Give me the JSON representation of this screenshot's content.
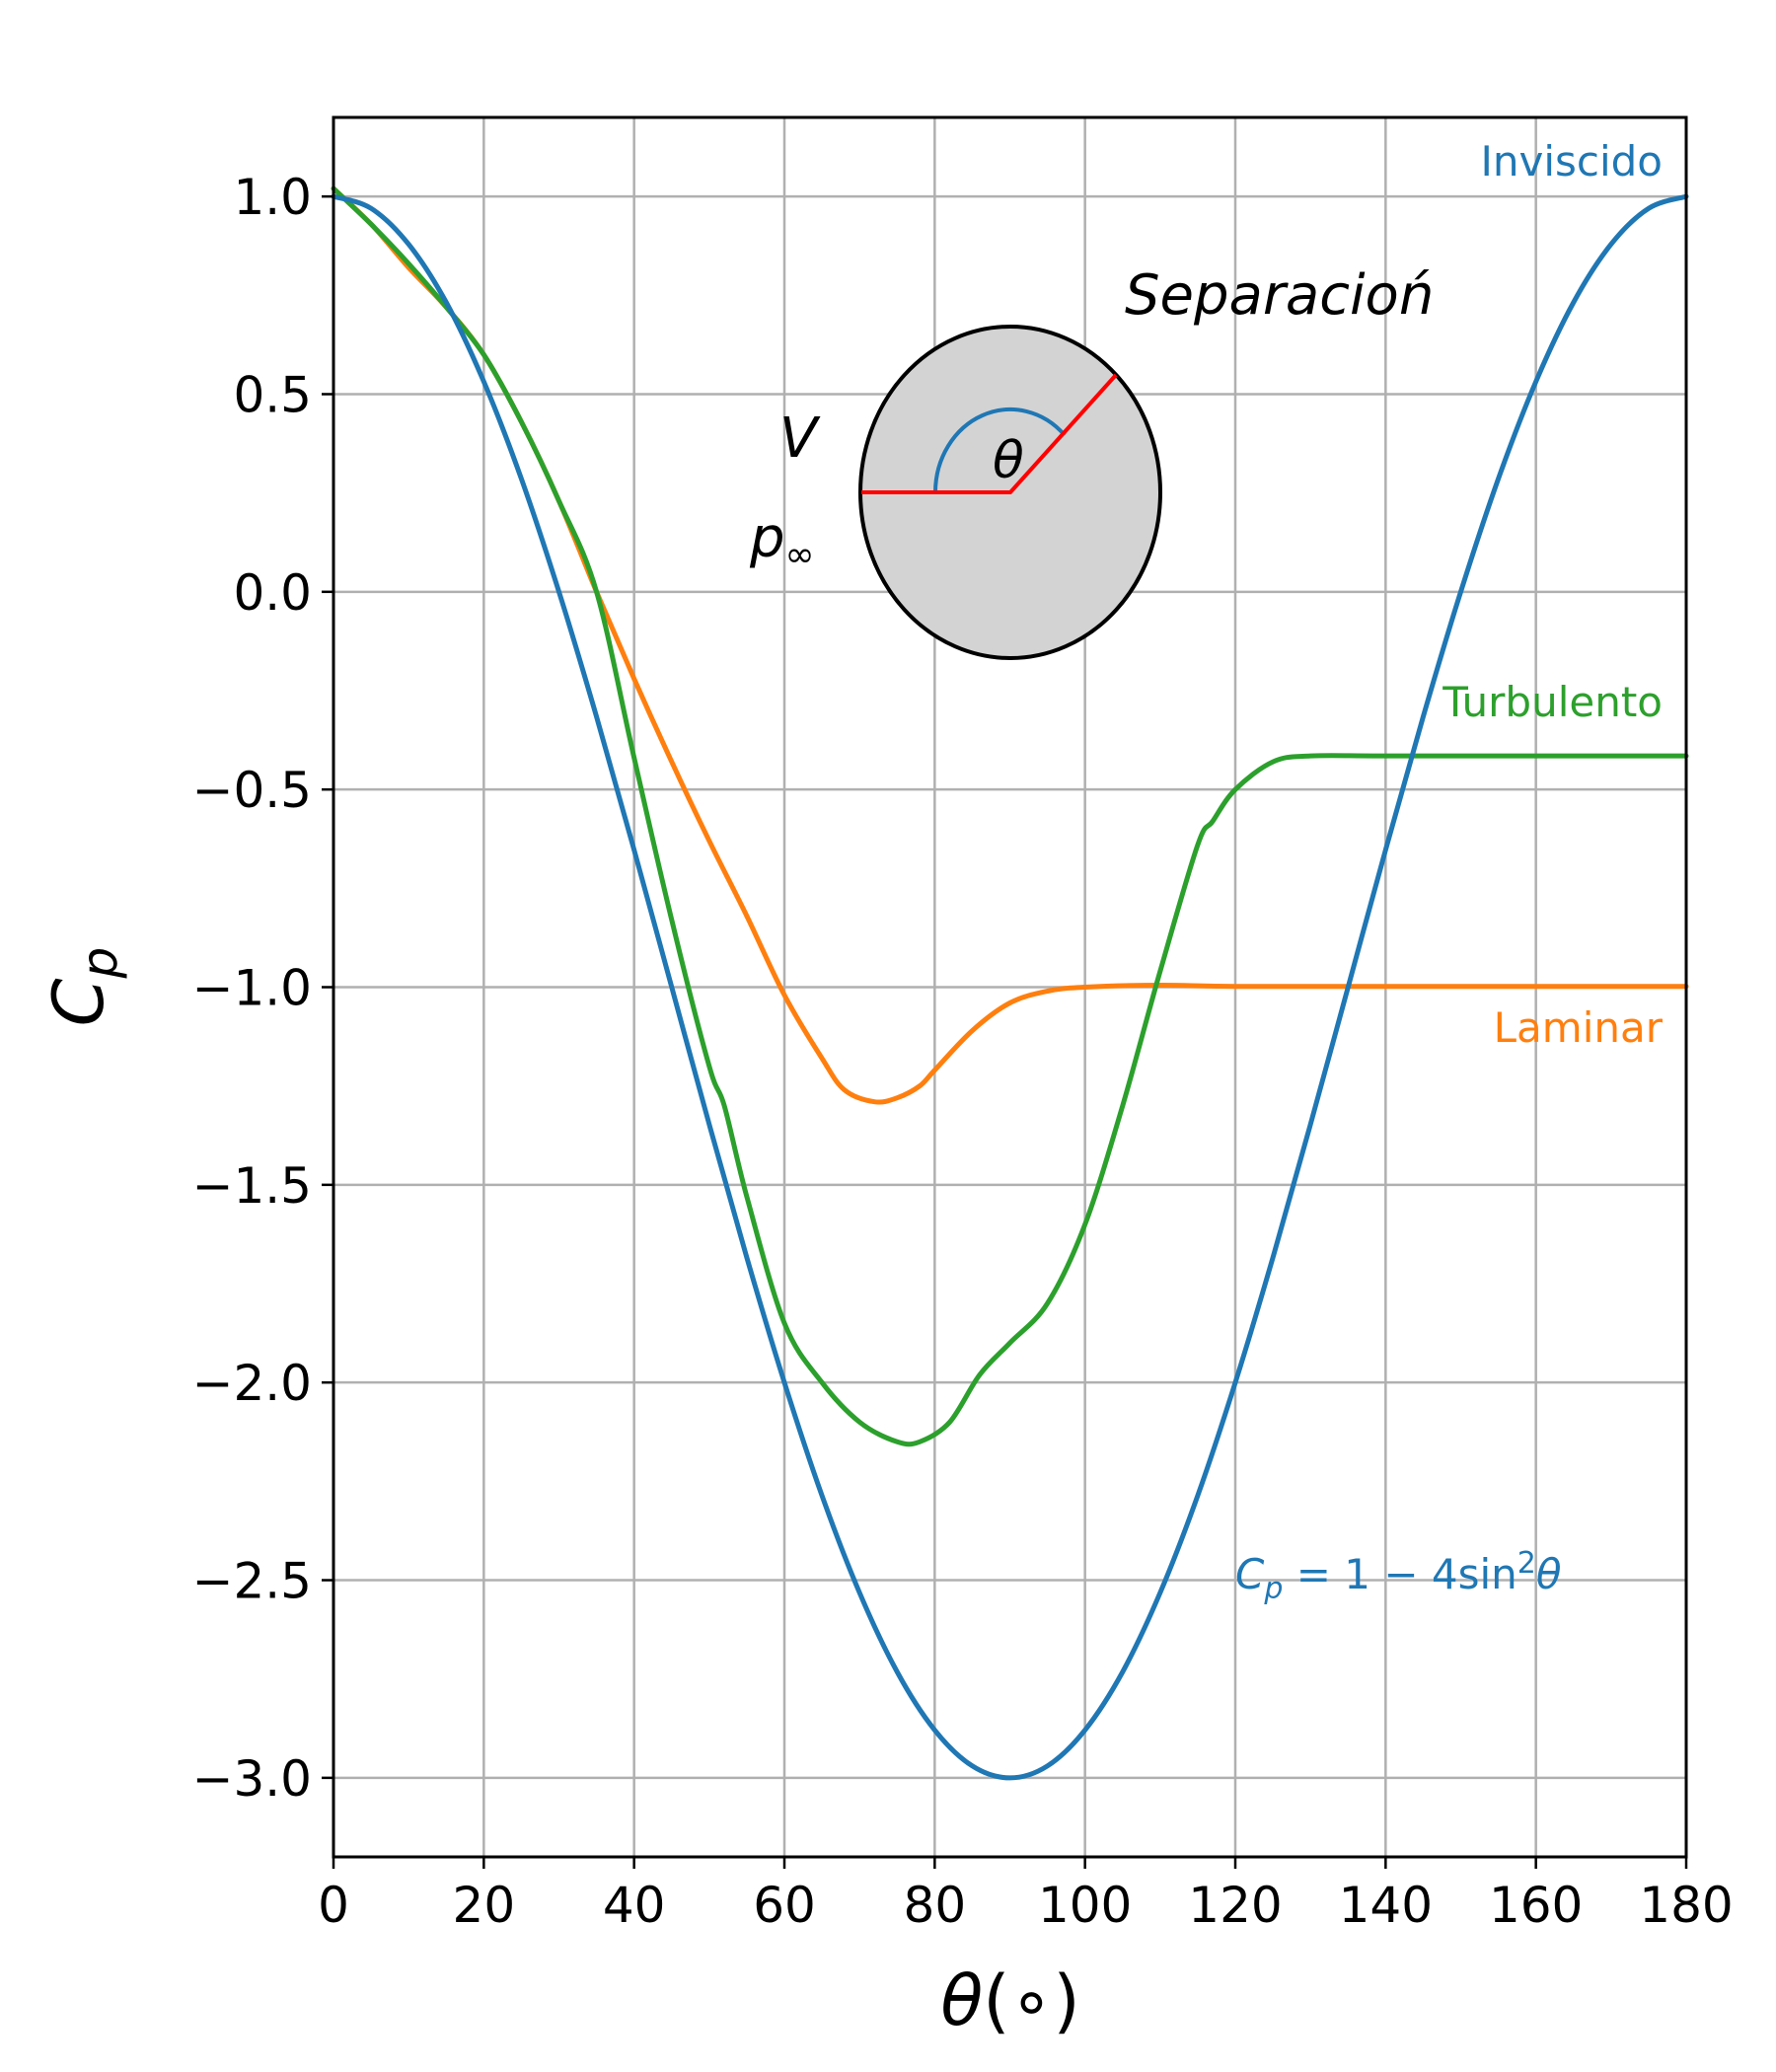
{
  "chart_data": {
    "type": "line",
    "xlabel": "θ(∘)",
    "ylabel": "C_p",
    "xlim": [
      0,
      180
    ],
    "ylim": [
      -3.2,
      1.2
    ],
    "x_ticks": [
      0,
      20,
      40,
      60,
      80,
      100,
      120,
      140,
      160,
      180
    ],
    "x_tick_labels": [
      "0",
      "20",
      "40",
      "60",
      "80",
      "100",
      "120",
      "140",
      "160",
      "180"
    ],
    "y_ticks": [
      1.0,
      0.5,
      0.0,
      -0.5,
      -1.0,
      -1.5,
      -2.0,
      -2.5,
      -3.0
    ],
    "y_tick_labels": [
      "1.0",
      "0.5",
      "0.0",
      "−0.5",
      "−1.0",
      "−1.5",
      "−2.0",
      "−2.5",
      "−3.0"
    ],
    "grid": true,
    "series": [
      {
        "name": "Inviscido",
        "color": "#1f77b4",
        "formula": "C_p = 1 − 4sin²θ",
        "x": [
          0,
          5,
          10,
          15,
          20,
          25,
          30,
          35,
          40,
          45,
          50,
          55,
          60,
          65,
          70,
          75,
          80,
          85,
          90,
          95,
          100,
          105,
          110,
          115,
          120,
          125,
          130,
          135,
          140,
          145,
          150,
          155,
          160,
          165,
          170,
          175,
          180
        ],
        "y": [
          1.0,
          0.97,
          0.879,
          0.732,
          0.532,
          0.286,
          0.0,
          -0.316,
          -0.653,
          -1.0,
          -1.347,
          -1.684,
          -2.0,
          -2.286,
          -2.532,
          -2.732,
          -2.879,
          -2.97,
          -3.0,
          -2.97,
          -2.879,
          -2.732,
          -2.532,
          -2.286,
          -2.0,
          -1.684,
          -1.347,
          -1.0,
          -0.653,
          -0.316,
          0.0,
          0.286,
          0.532,
          0.732,
          0.879,
          0.97,
          1.0
        ]
      },
      {
        "name": "Laminar",
        "color": "#ff7f0e",
        "x": [
          0,
          5,
          10,
          15,
          20,
          25,
          30,
          35,
          40,
          45,
          50,
          55,
          60,
          65,
          68,
          72,
          75,
          78,
          80,
          85,
          90,
          95,
          100,
          110,
          120,
          140,
          160,
          180
        ],
        "y": [
          1.02,
          0.93,
          0.82,
          0.72,
          0.6,
          0.43,
          0.23,
          0.0,
          -0.22,
          -0.43,
          -0.63,
          -0.82,
          -1.02,
          -1.18,
          -1.26,
          -1.29,
          -1.28,
          -1.25,
          -1.21,
          -1.11,
          -1.04,
          -1.01,
          -1.0,
          -0.995,
          -0.998,
          -0.998,
          -0.998,
          -0.998
        ]
      },
      {
        "name": "Turbulento",
        "color": "#2ca02c",
        "x": [
          0,
          5,
          10,
          15,
          20,
          25,
          30,
          35,
          40,
          45,
          50,
          52,
          55,
          60,
          65,
          70,
          75,
          78,
          82,
          86,
          90,
          95,
          100,
          105,
          110,
          115,
          117,
          120,
          125,
          130,
          140,
          160,
          180
        ],
        "y": [
          1.02,
          0.93,
          0.83,
          0.72,
          0.6,
          0.43,
          0.23,
          0.0,
          -0.42,
          -0.83,
          -1.2,
          -1.3,
          -1.53,
          -1.85,
          -2.0,
          -2.1,
          -2.15,
          -2.15,
          -2.1,
          -1.98,
          -1.9,
          -1.8,
          -1.6,
          -1.3,
          -0.96,
          -0.64,
          -0.58,
          -0.5,
          -0.43,
          -0.415,
          -0.415,
          -0.415,
          -0.415
        ]
      }
    ],
    "annotations": {
      "separacion": "Separacioń",
      "velocity": "V",
      "pressure_base": "p",
      "pressure_sub": "∞",
      "angle": "θ",
      "formula": {
        "a": "C",
        "b": "p",
        "c": " = 1 − 4sin",
        "d": "2",
        "e": "θ"
      }
    }
  }
}
